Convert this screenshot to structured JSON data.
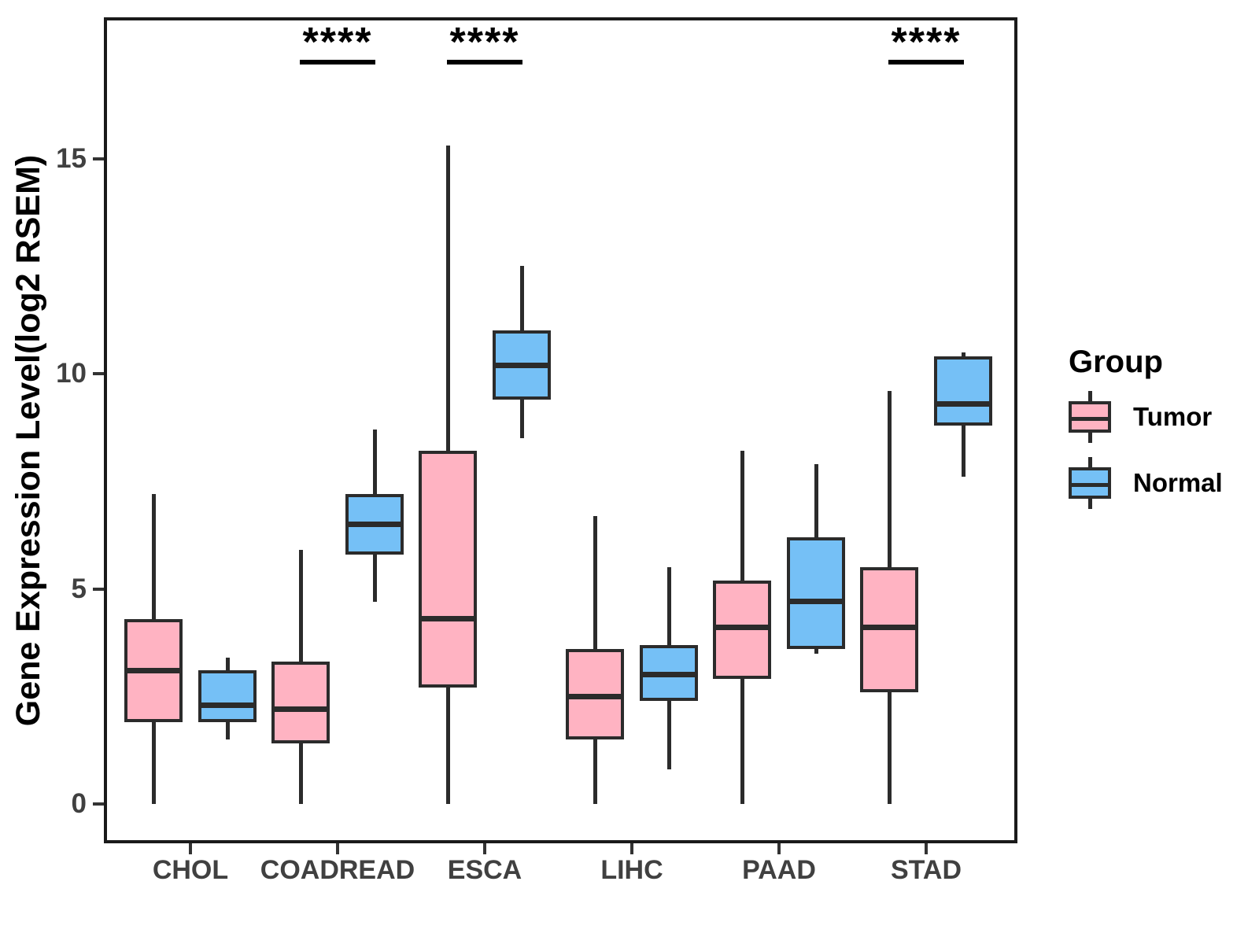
{
  "chart_data": {
    "type": "boxplot",
    "title": "",
    "xlabel": "",
    "ylabel": "Gene Expression Level(log2 RSEM)",
    "ylim": [
      -0.9,
      18.3
    ],
    "yticks": [
      0,
      5,
      10,
      15
    ],
    "grid": false,
    "categories": [
      "CHOL",
      "COADREAD",
      "ESCA",
      "LIHC",
      "PAAD",
      "STAD"
    ],
    "legend": {
      "title": "Group",
      "position": "right"
    },
    "series": [
      {
        "name": "Tumor",
        "color": "#FFB3C2",
        "boxes": [
          {
            "category": "CHOL",
            "min": 0,
            "q1": 1.9,
            "median": 3.1,
            "q3": 4.3,
            "max": 7.2
          },
          {
            "category": "COADREAD",
            "min": 0,
            "q1": 1.4,
            "median": 2.2,
            "q3": 3.3,
            "max": 5.9
          },
          {
            "category": "ESCA",
            "min": 0,
            "q1": 2.7,
            "median": 4.3,
            "q3": 8.2,
            "max": 15.3
          },
          {
            "category": "LIHC",
            "min": 0,
            "q1": 1.5,
            "median": 2.5,
            "q3": 3.6,
            "max": 6.7
          },
          {
            "category": "PAAD",
            "min": 0,
            "q1": 2.9,
            "median": 4.1,
            "q3": 5.2,
            "max": 8.2
          },
          {
            "category": "STAD",
            "min": 0,
            "q1": 2.6,
            "median": 4.1,
            "q3": 5.5,
            "max": 9.6
          }
        ]
      },
      {
        "name": "Normal",
        "color": "#75C0F6",
        "boxes": [
          {
            "category": "CHOL",
            "min": 1.5,
            "q1": 1.9,
            "median": 2.3,
            "q3": 3.1,
            "max": 3.4
          },
          {
            "category": "COADREAD",
            "min": 4.7,
            "q1": 5.8,
            "median": 6.5,
            "q3": 7.2,
            "max": 8.7
          },
          {
            "category": "ESCA",
            "min": 8.5,
            "q1": 9.4,
            "median": 10.2,
            "q3": 11.0,
            "max": 12.5
          },
          {
            "category": "LIHC",
            "min": 0.8,
            "q1": 2.4,
            "median": 3.0,
            "q3": 3.7,
            "max": 5.5
          },
          {
            "category": "PAAD",
            "min": 3.5,
            "q1": 3.6,
            "median": 4.7,
            "q3": 6.2,
            "max": 7.9
          },
          {
            "category": "STAD",
            "min": 7.6,
            "q1": 8.8,
            "median": 9.3,
            "q3": 10.4,
            "max": 10.5
          }
        ]
      }
    ],
    "significance": [
      {
        "category": "COADREAD",
        "label": "****"
      },
      {
        "category": "ESCA",
        "label": "****"
      },
      {
        "category": "STAD",
        "label": "****"
      }
    ]
  }
}
